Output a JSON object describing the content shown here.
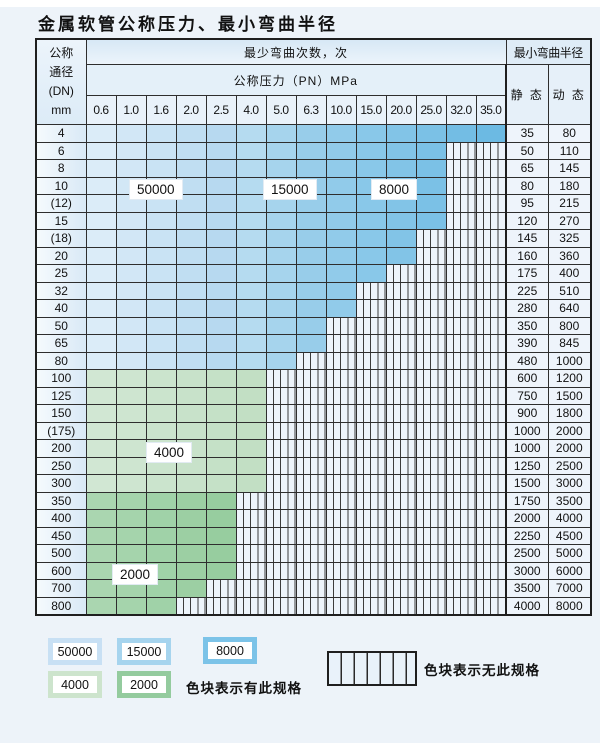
{
  "title": "金属软管公称压力、最小弯曲半径",
  "table": {
    "corner": {
      "line1": "公称",
      "line2": "通径",
      "line3": "(DN)",
      "line4": "mm"
    },
    "bend_cycles_header": "最少弯曲次数，次",
    "pressure_header": "公称压力（PN）MPa",
    "radius_header": "最小弯曲半径",
    "static_header": "静 态",
    "dynamic_header": "动 态",
    "pressure_columns": [
      "0.6",
      "1.0",
      "1.6",
      "2.0",
      "2.5",
      "4.0",
      "5.0",
      "6.3",
      "10.0",
      "15.0",
      "20.0",
      "25.0",
      "32.0",
      "35.0"
    ],
    "cycle_zones_by_pressure": {
      "50000": "0.6–2.5",
      "15000": "4.0–6.3",
      "8000": "10.0–35.0"
    },
    "cycle_zones_by_dn": {
      "4000": "DN100–300",
      "2000": "DN350–800"
    },
    "rows": [
      {
        "dn": "4",
        "colored_through": "35.0",
        "cycles_zone": "pressure-banded",
        "static": "35",
        "dynamic": "80"
      },
      {
        "dn": "6",
        "colored_through": "25.0",
        "cycles_zone": "pressure-banded",
        "static": "50",
        "dynamic": "110"
      },
      {
        "dn": "8",
        "colored_through": "25.0",
        "cycles_zone": "pressure-banded",
        "static": "65",
        "dynamic": "145"
      },
      {
        "dn": "10",
        "colored_through": "25.0",
        "cycles_zone": "pressure-banded",
        "static": "80",
        "dynamic": "180"
      },
      {
        "dn": "(12)",
        "colored_through": "25.0",
        "cycles_zone": "pressure-banded",
        "static": "95",
        "dynamic": "215"
      },
      {
        "dn": "15",
        "colored_through": "25.0",
        "cycles_zone": "pressure-banded",
        "static": "120",
        "dynamic": "270"
      },
      {
        "dn": "(18)",
        "colored_through": "20.0",
        "cycles_zone": "pressure-banded",
        "static": "145",
        "dynamic": "325"
      },
      {
        "dn": "20",
        "colored_through": "20.0",
        "cycles_zone": "pressure-banded",
        "static": "160",
        "dynamic": "360"
      },
      {
        "dn": "25",
        "colored_through": "15.0",
        "cycles_zone": "pressure-banded",
        "static": "175",
        "dynamic": "400"
      },
      {
        "dn": "32",
        "colored_through": "10.0",
        "cycles_zone": "pressure-banded",
        "static": "225",
        "dynamic": "510"
      },
      {
        "dn": "40",
        "colored_through": "10.0",
        "cycles_zone": "pressure-banded",
        "static": "280",
        "dynamic": "640"
      },
      {
        "dn": "50",
        "colored_through": "6.3",
        "cycles_zone": "pressure-banded",
        "static": "350",
        "dynamic": "800"
      },
      {
        "dn": "65",
        "colored_through": "6.3",
        "cycles_zone": "pressure-banded",
        "static": "390",
        "dynamic": "845"
      },
      {
        "dn": "80",
        "colored_through": "5.0",
        "cycles_zone": "pressure-banded",
        "static": "480",
        "dynamic": "1000"
      },
      {
        "dn": "100",
        "colored_through": "4.0",
        "cycles_zone": "4000",
        "static": "600",
        "dynamic": "1200"
      },
      {
        "dn": "125",
        "colored_through": "4.0",
        "cycles_zone": "4000",
        "static": "750",
        "dynamic": "1500"
      },
      {
        "dn": "150",
        "colored_through": "4.0",
        "cycles_zone": "4000",
        "static": "900",
        "dynamic": "1800"
      },
      {
        "dn": "(175)",
        "colored_through": "4.0",
        "cycles_zone": "4000",
        "static": "1000",
        "dynamic": "2000"
      },
      {
        "dn": "200",
        "colored_through": "4.0",
        "cycles_zone": "4000",
        "static": "1000",
        "dynamic": "2000"
      },
      {
        "dn": "250",
        "colored_through": "4.0",
        "cycles_zone": "4000",
        "static": "1250",
        "dynamic": "2500"
      },
      {
        "dn": "300",
        "colored_through": "4.0",
        "cycles_zone": "4000",
        "static": "1500",
        "dynamic": "3000"
      },
      {
        "dn": "350",
        "colored_through": "2.5",
        "cycles_zone": "2000",
        "static": "1750",
        "dynamic": "3500"
      },
      {
        "dn": "400",
        "colored_through": "2.5",
        "cycles_zone": "2000",
        "static": "2000",
        "dynamic": "4000"
      },
      {
        "dn": "450",
        "colored_through": "2.5",
        "cycles_zone": "2000",
        "static": "2250",
        "dynamic": "4500"
      },
      {
        "dn": "500",
        "colored_through": "2.5",
        "cycles_zone": "2000",
        "static": "2500",
        "dynamic": "5000"
      },
      {
        "dn": "600",
        "colored_through": "2.5",
        "cycles_zone": "2000",
        "static": "3000",
        "dynamic": "6000"
      },
      {
        "dn": "700",
        "colored_through": "2.0",
        "cycles_zone": "2000",
        "static": "3500",
        "dynamic": "7000"
      },
      {
        "dn": "800",
        "colored_through": "1.6",
        "cycles_zone": "2000",
        "static": "4000",
        "dynamic": "8000"
      }
    ]
  },
  "overlay_labels": [
    "50000",
    "15000",
    "8000",
    "4000",
    "2000"
  ],
  "legend": {
    "items": [
      {
        "label": "50000",
        "color": "#c8e0f4"
      },
      {
        "label": "15000",
        "color": "#a6d4ee"
      },
      {
        "label": "8000",
        "color": "#7cc3e8"
      },
      {
        "label": "4000",
        "color": "#cde4cd"
      },
      {
        "label": "2000",
        "color": "#94cb9e"
      }
    ],
    "has_spec_text": "色块表示有此规格",
    "no_spec_text": "色块表示无此规格"
  },
  "colors": {
    "page_bg": "#edf3f9",
    "grid_line": "#2e2e2e",
    "striped_fill": "#edf4fb",
    "cycles_50000": "#b7d9f0",
    "cycles_15000": "#98cdea",
    "cycles_8000": "#6cbae3",
    "cycles_4000": "#c2dfc4",
    "cycles_2000": "#97cd9f"
  }
}
